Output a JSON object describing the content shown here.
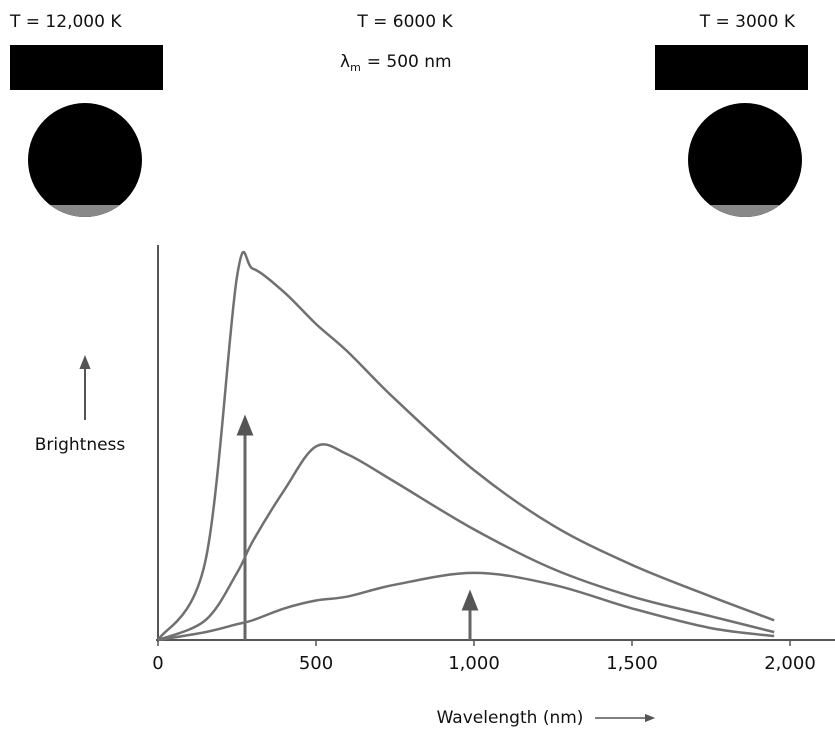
{
  "chart_data": {
    "type": "line",
    "labels": {
      "hot": "T = 12,000 K",
      "mid": "T = 6000 K",
      "cool": "T = 3000 K",
      "peak_symbol": "λ",
      "peak_sub": "m",
      "peak_text": "= 500 nm"
    },
    "ylabel": "Brightness",
    "xlabel": "Wavelength (nm)",
    "x": [
      0,
      150,
      250,
      300,
      400,
      500,
      600,
      750,
      1000,
      1250,
      1500,
      1750,
      1950
    ],
    "series": [
      {
        "name": "T = 12,000 K",
        "color": "#707070",
        "values": [
          0,
          20,
          92,
          94,
          88,
          80,
          73,
          61,
          43,
          29,
          19,
          11,
          5
        ]
      },
      {
        "name": "T = 6000 K",
        "color": "#707070",
        "values": [
          0,
          5,
          17,
          25,
          38,
          49,
          47,
          40,
          28,
          18,
          11,
          6,
          2
        ]
      },
      {
        "name": "T = 3000 K",
        "color": "#707070",
        "values": [
          0,
          2,
          4,
          5,
          8,
          10,
          11,
          14,
          17,
          14,
          8,
          3,
          1
        ]
      }
    ],
    "xlim": [
      0,
      2140
    ],
    "ylim": [
      0,
      100
    ],
    "xticks": [
      0,
      500,
      {
        "value": 1000,
        "label": "1,000"
      },
      {
        "value": 1500,
        "label": "1,500"
      },
      {
        "value": 2000,
        "label": "2,000"
      }
    ]
  }
}
